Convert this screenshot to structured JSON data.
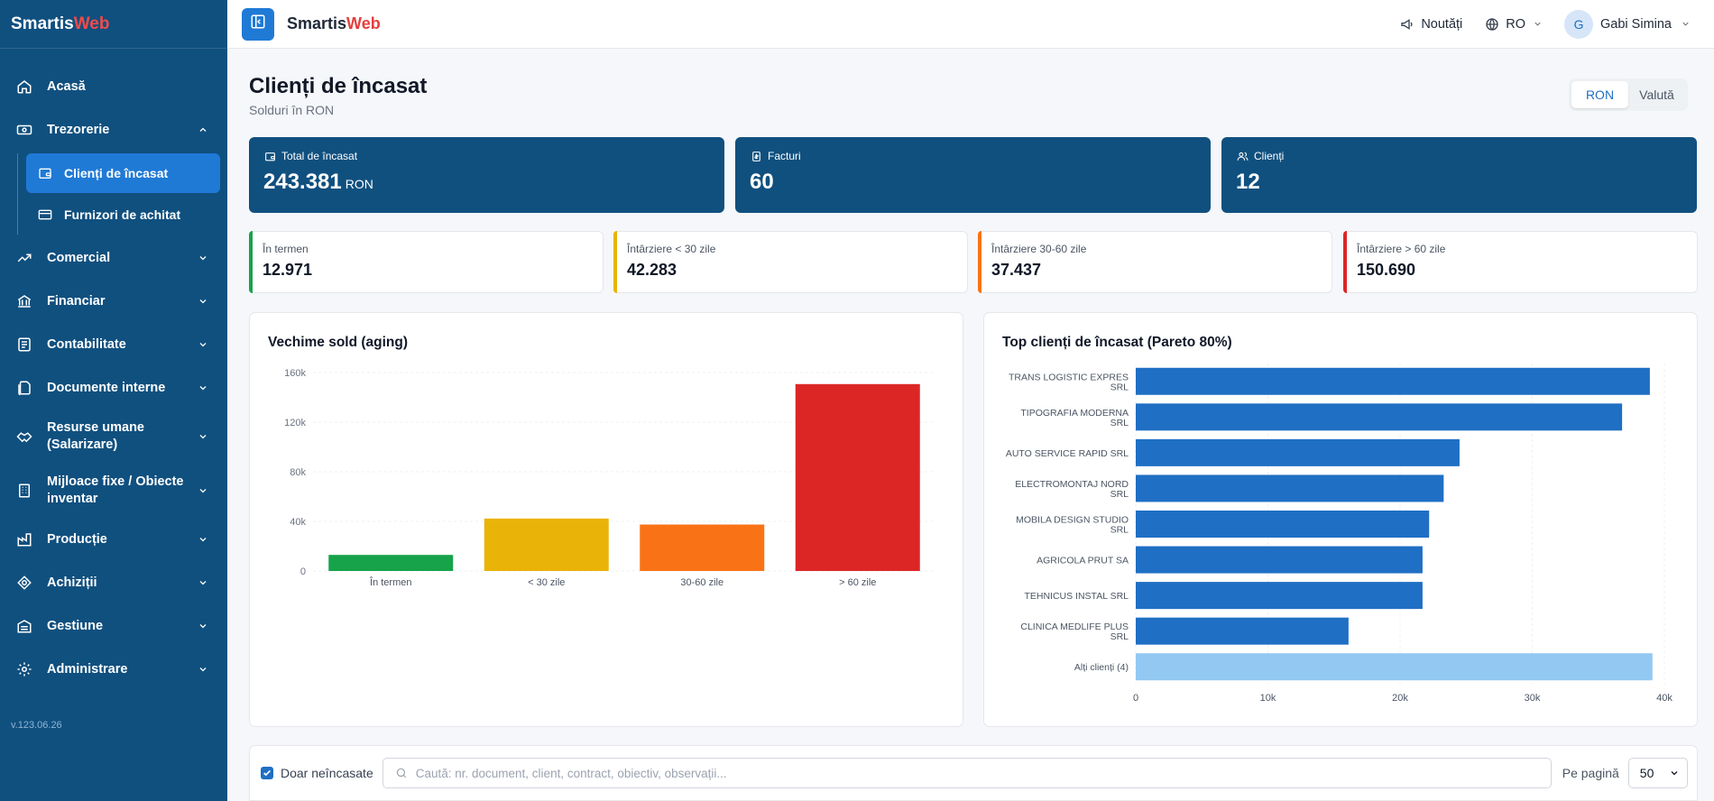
{
  "brand": {
    "part1": "Smartis",
    "part2": "Web"
  },
  "sidebar": {
    "items": [
      {
        "label": "Acasă",
        "icon": "home-icon"
      },
      {
        "label": "Trezorerie",
        "icon": "cash-icon",
        "expanded": true,
        "children": [
          {
            "label": "Clienți de încasat",
            "icon": "wallet-icon",
            "active": true
          },
          {
            "label": "Furnizori de achitat",
            "icon": "card-icon"
          }
        ]
      },
      {
        "label": "Comercial",
        "icon": "trend-icon"
      },
      {
        "label": "Financiar",
        "icon": "bank-icon"
      },
      {
        "label": "Contabilitate",
        "icon": "ledger-icon"
      },
      {
        "label": "Documente interne",
        "icon": "documents-icon"
      },
      {
        "label": "Resurse umane (Salarizare)",
        "icon": "handshake-icon"
      },
      {
        "label": "Mijloace fixe / Obiecte inventar",
        "icon": "building-icon"
      },
      {
        "label": "Producție",
        "icon": "factory-icon"
      },
      {
        "label": "Achiziții",
        "icon": "purchase-icon"
      },
      {
        "label": "Gestiune",
        "icon": "warehouse-icon"
      },
      {
        "label": "Administrare",
        "icon": "gear-icon"
      }
    ],
    "version": "v.123.06.26"
  },
  "topbar": {
    "news_label": "Noutăți",
    "language": "RO",
    "user_initial": "G",
    "user_name": "Gabi Simina"
  },
  "page": {
    "title": "Clienți de încasat",
    "subtitle": "Solduri în RON",
    "currency_options": [
      "RON",
      "Valută"
    ],
    "currency_selected": "RON"
  },
  "kpis": [
    {
      "label": "Total de încasat",
      "value": "243.381",
      "unit": "RON",
      "icon": "wallet-icon"
    },
    {
      "label": "Facturi",
      "value": "60",
      "icon": "invoice-icon"
    },
    {
      "label": "Clienți",
      "value": "12",
      "icon": "users-icon"
    }
  ],
  "aging_cards": [
    {
      "label": "În termen",
      "value": "12.971",
      "color": "#16a34a"
    },
    {
      "label": "Întârziere < 30 zile",
      "value": "42.283",
      "color": "#eab308"
    },
    {
      "label": "Întârziere 30-60 zile",
      "value": "37.437",
      "color": "#f97316"
    },
    {
      "label": "Întârziere > 60 zile",
      "value": "150.690",
      "color": "#dc2626"
    }
  ],
  "chart_data": [
    {
      "type": "bar",
      "title": "Vechime sold (aging)",
      "categories": [
        "În termen",
        "< 30 zile",
        "30-60 zile",
        "> 60 zile"
      ],
      "values": [
        12971,
        42283,
        37437,
        150690
      ],
      "colors": [
        "#16a34a",
        "#eab308",
        "#f97316",
        "#dc2626"
      ],
      "yticks": [
        "0",
        "40k",
        "80k",
        "120k",
        "160k"
      ],
      "ylim": [
        0,
        160000
      ],
      "grid": true
    },
    {
      "type": "bar",
      "orientation": "horizontal",
      "title": "Top clienți de încasat (Pareto 80%)",
      "categories": [
        [
          "TRANS LOGISTIC EXPRES",
          "SRL"
        ],
        [
          "TIPOGRAFIA MODERNA",
          "SRL"
        ],
        [
          "AUTO SERVICE RAPID SRL"
        ],
        [
          "ELECTROMONTAJ NORD",
          "SRL"
        ],
        [
          "MOBILA DESIGN STUDIO",
          "SRL"
        ],
        [
          "AGRICOLA PRUT SA"
        ],
        [
          "TEHNICUS INSTAL SRL"
        ],
        [
          "CLINICA MEDLIFE PLUS",
          "SRL"
        ],
        [
          "Alți clienți (4)"
        ]
      ],
      "values": [
        38900,
        36800,
        24500,
        23300,
        22200,
        21700,
        21700,
        16100,
        39100
      ],
      "colors": [
        "#1f6fc4",
        "#1f6fc4",
        "#1f6fc4",
        "#1f6fc4",
        "#1f6fc4",
        "#1f6fc4",
        "#1f6fc4",
        "#1f6fc4",
        "#93c8f3"
      ],
      "xticks": [
        "0",
        "10k",
        "20k",
        "30k",
        "40k"
      ],
      "xlim": [
        0,
        40000
      ],
      "grid": true
    }
  ],
  "filter": {
    "only_unpaid_label": "Doar neîncasate",
    "only_unpaid_checked": true,
    "search_placeholder": "Caută: nr. document, client, contract, obiectiv, observații...",
    "per_page_label": "Pe pagină",
    "per_page_value": "50"
  }
}
